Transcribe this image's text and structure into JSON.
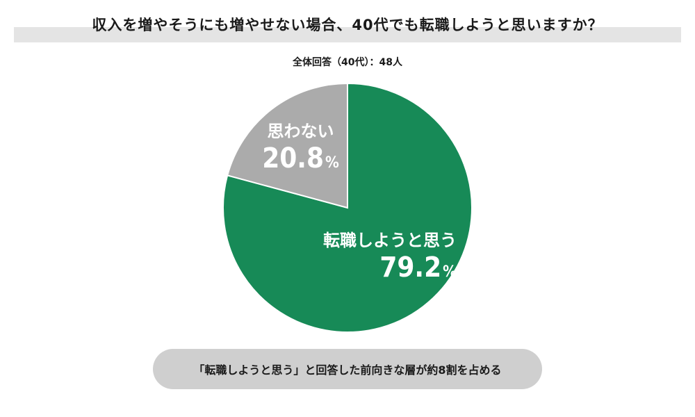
{
  "title": "収入を増やそうにも増やせない場合、40代でも転職しようと思いますか？",
  "subtitle": "全体回答（40代）：48人",
  "summary": "「転職しようと思う」と回答した前向きな層が約8割を占める",
  "chart_data": {
    "type": "pie",
    "slices": [
      {
        "label": "転職しようと思う",
        "value": 79.2,
        "display": "79.2",
        "color": "#178a57"
      },
      {
        "label": "思わない",
        "value": 20.8,
        "display": "20.8",
        "color": "#ababab"
      }
    ],
    "unit": "%"
  }
}
